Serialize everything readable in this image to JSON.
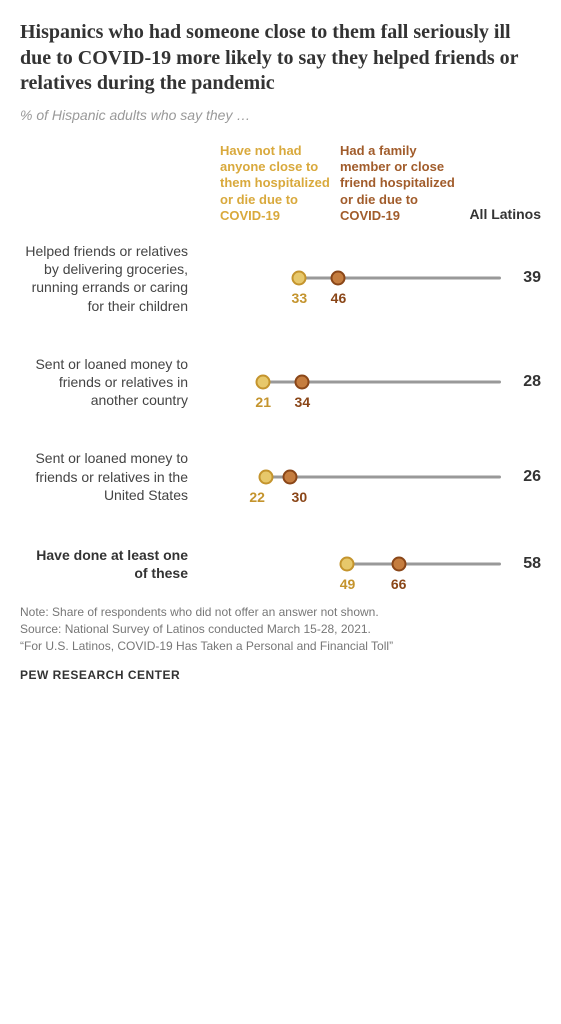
{
  "title": "Hispanics who had someone close to them fall seriously ill due to COVID-19 more likely to say they helped friends or relatives during the pandemic",
  "subtitle": "% of Hispanic adults who say they …",
  "legend": {
    "not_had": "Have not had anyone close to them hospitalized or die due to COVID-19",
    "had": "Had a family member or close friend hospitalized or die due to COVID-19",
    "all": "All Latinos"
  },
  "scale_min": 0,
  "scale_max": 100,
  "colors": {
    "yellow_fill": "#e7c86b",
    "yellow_stroke": "#c4942d",
    "brown_fill": "#c57d3f",
    "brown_stroke": "#8a4618",
    "track": "#999999",
    "text": "#333333",
    "subtitle": "#999999",
    "note": "#777777"
  },
  "rows": [
    {
      "label": "Helped friends or relatives by delivering groceries, running errands or caring for their children",
      "not_had": 33,
      "had": 46,
      "total": 39,
      "bold": false
    },
    {
      "label": "Sent or loaned money to friends or relatives in another country",
      "not_had": 21,
      "had": 34,
      "total": 28,
      "bold": false
    },
    {
      "label": "Sent or loaned money to friends or relatives in the United States",
      "not_had": 22,
      "had": 30,
      "total": 26,
      "bold": false
    },
    {
      "label": "Have done at least one of these",
      "not_had": 49,
      "had": 66,
      "total": 58,
      "bold": true
    }
  ],
  "note": "Note: Share of respondents who did not offer an answer not shown.\nSource: National Survey of Latinos conducted March 15-28, 2021.\n“For U.S. Latinos, COVID-19 Has Taken a Personal and Financial Toll”",
  "brand": "PEW RESEARCH CENTER"
}
